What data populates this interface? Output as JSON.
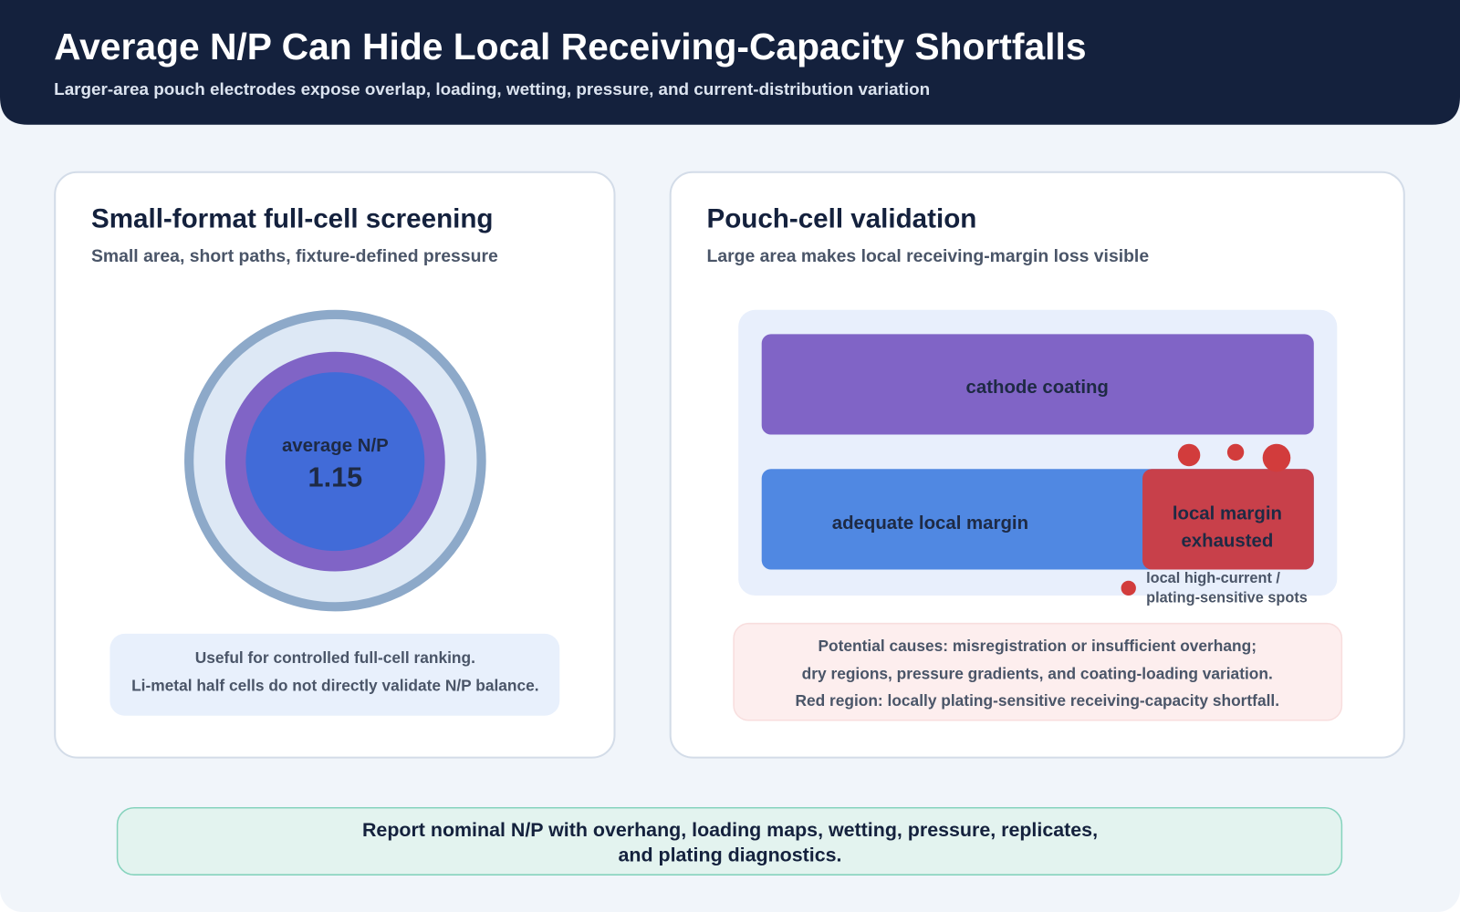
{
  "header": {
    "title": "Average N/P Can Hide Local Receiving-Capacity Shortfalls",
    "subtitle": "Larger-area pouch electrodes expose overlap, loading, wetting, pressure, and current-distribution variation"
  },
  "left_panel": {
    "title": "Small-format full-cell screening",
    "subtitle": "Small area, short paths, fixture-defined pressure",
    "center_label": "average N/P",
    "center_value": "1.15",
    "notes": [
      "Useful for controlled full-cell ranking.",
      "Li-metal half cells do not directly validate N/P balance."
    ]
  },
  "right_panel": {
    "title": "Pouch-cell validation",
    "subtitle": "Large area makes local receiving-margin loss visible",
    "cathode_label": "cathode coating",
    "adequate_label": "adequate local margin",
    "exhausted_label": [
      "local margin",
      "exhausted"
    ],
    "spots_label": [
      "local high-current /",
      "plating-sensitive spots"
    ],
    "causes": [
      "Potential causes: misregistration or insufficient overhang;",
      "dry regions, pressure gradients, and coating-loading variation.",
      "Red region: locally plating-sensitive receiving-capacity shortfall."
    ]
  },
  "footer": {
    "lines": [
      "Report nominal N/P with overhang, loading maps, wetting, pressure, replicates,",
      "and plating diagnostics."
    ]
  }
}
